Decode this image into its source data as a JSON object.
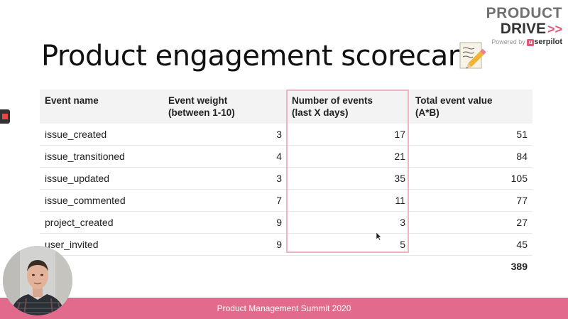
{
  "brand": {
    "line1": "PRODUCT",
    "line2": "DRIVE",
    "chevrons": ">>",
    "powered_by": "Powered by",
    "sponsor_mark": "u",
    "sponsor_name": "serpilot",
    "accent_color": "#e0587a"
  },
  "slide": {
    "title": "Product engagement scorecard",
    "title_icon": "memo-pencil-icon"
  },
  "table": {
    "headers": [
      {
        "line1": "Event name",
        "line2": ""
      },
      {
        "line1": "Event weight",
        "line2": "(between 1-10)"
      },
      {
        "line1": "Number of events",
        "line2": "(last X days)"
      },
      {
        "line1": "Total event value",
        "line2": "(A*B)"
      }
    ],
    "rows": [
      {
        "event": "issue_created",
        "weight": "3",
        "count": "17",
        "value": "51"
      },
      {
        "event": "issue_transitioned",
        "weight": "4",
        "count": "21",
        "value": "84"
      },
      {
        "event": "issue_updated",
        "weight": "3",
        "count": "35",
        "value": "105"
      },
      {
        "event": "issue_commented",
        "weight": "7",
        "count": "11",
        "value": "77"
      },
      {
        "event": "project_created",
        "weight": "9",
        "count": "3",
        "value": "27"
      },
      {
        "event": "user_invited",
        "weight": "9",
        "count": "5",
        "value": "45"
      }
    ],
    "total": "389",
    "highlight_color": "#f0b3c1"
  },
  "footer": {
    "text": "Product Management Summit 2020",
    "color": "#e26a8c"
  }
}
